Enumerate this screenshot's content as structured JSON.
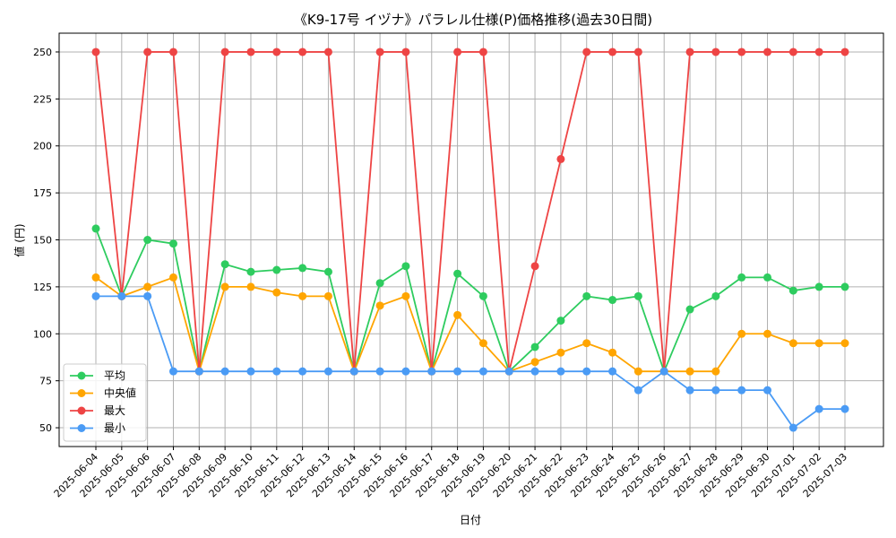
{
  "chart_data": {
    "type": "line",
    "title": "《K9-17号 イヅナ》パラレル仕様(P)価格推移(過去30日間)",
    "xlabel": "日付",
    "ylabel": "値 (円)",
    "ylim": [
      40,
      260
    ],
    "yticks": [
      50,
      75,
      100,
      125,
      150,
      175,
      200,
      225,
      250
    ],
    "grid": true,
    "legend_position": "lower-left",
    "categories": [
      "2025-06-04",
      "2025-06-05",
      "2025-06-06",
      "2025-06-07",
      "2025-06-08",
      "2025-06-09",
      "2025-06-10",
      "2025-06-11",
      "2025-06-12",
      "2025-06-13",
      "2025-06-14",
      "2025-06-15",
      "2025-06-16",
      "2025-06-17",
      "2025-06-18",
      "2025-06-19",
      "2025-06-20",
      "2025-06-21",
      "2025-06-22",
      "2025-06-23",
      "2025-06-24",
      "2025-06-25",
      "2025-06-26",
      "2025-06-27",
      "2025-06-28",
      "2025-06-29",
      "2025-06-30",
      "2025-07-01",
      "2025-07-02",
      "2025-07-03"
    ],
    "series": [
      {
        "name": "平均",
        "color": "#2ecc5f",
        "values": [
          156,
          120,
          150,
          148,
          80,
          137,
          133,
          134,
          135,
          133,
          80,
          127,
          136,
          80,
          132,
          120,
          80,
          93,
          107,
          120,
          118,
          120,
          80,
          113,
          120,
          130,
          130,
          123,
          125,
          125
        ]
      },
      {
        "name": "中央値",
        "color": "#ffa500",
        "values": [
          130,
          120,
          125,
          130,
          80,
          125,
          125,
          122,
          120,
          120,
          80,
          115,
          120,
          80,
          110,
          95,
          80,
          85,
          90,
          95,
          90,
          80,
          80,
          80,
          80,
          100,
          100,
          95,
          95,
          95
        ]
      },
      {
        "name": "最大",
        "color": "#ee4444",
        "values": [
          250,
          120,
          250,
          250,
          80,
          250,
          250,
          250,
          250,
          250,
          80,
          250,
          250,
          80,
          250,
          250,
          80,
          136,
          193,
          250,
          250,
          250,
          80,
          250,
          250,
          250,
          250,
          250,
          250,
          250
        ]
      },
      {
        "name": "最小",
        "color": "#4a9bf5",
        "values": [
          120,
          120,
          120,
          80,
          80,
          80,
          80,
          80,
          80,
          80,
          80,
          80,
          80,
          80,
          80,
          80,
          80,
          80,
          80,
          80,
          80,
          70,
          80,
          70,
          70,
          70,
          70,
          50,
          60,
          60
        ]
      }
    ]
  }
}
